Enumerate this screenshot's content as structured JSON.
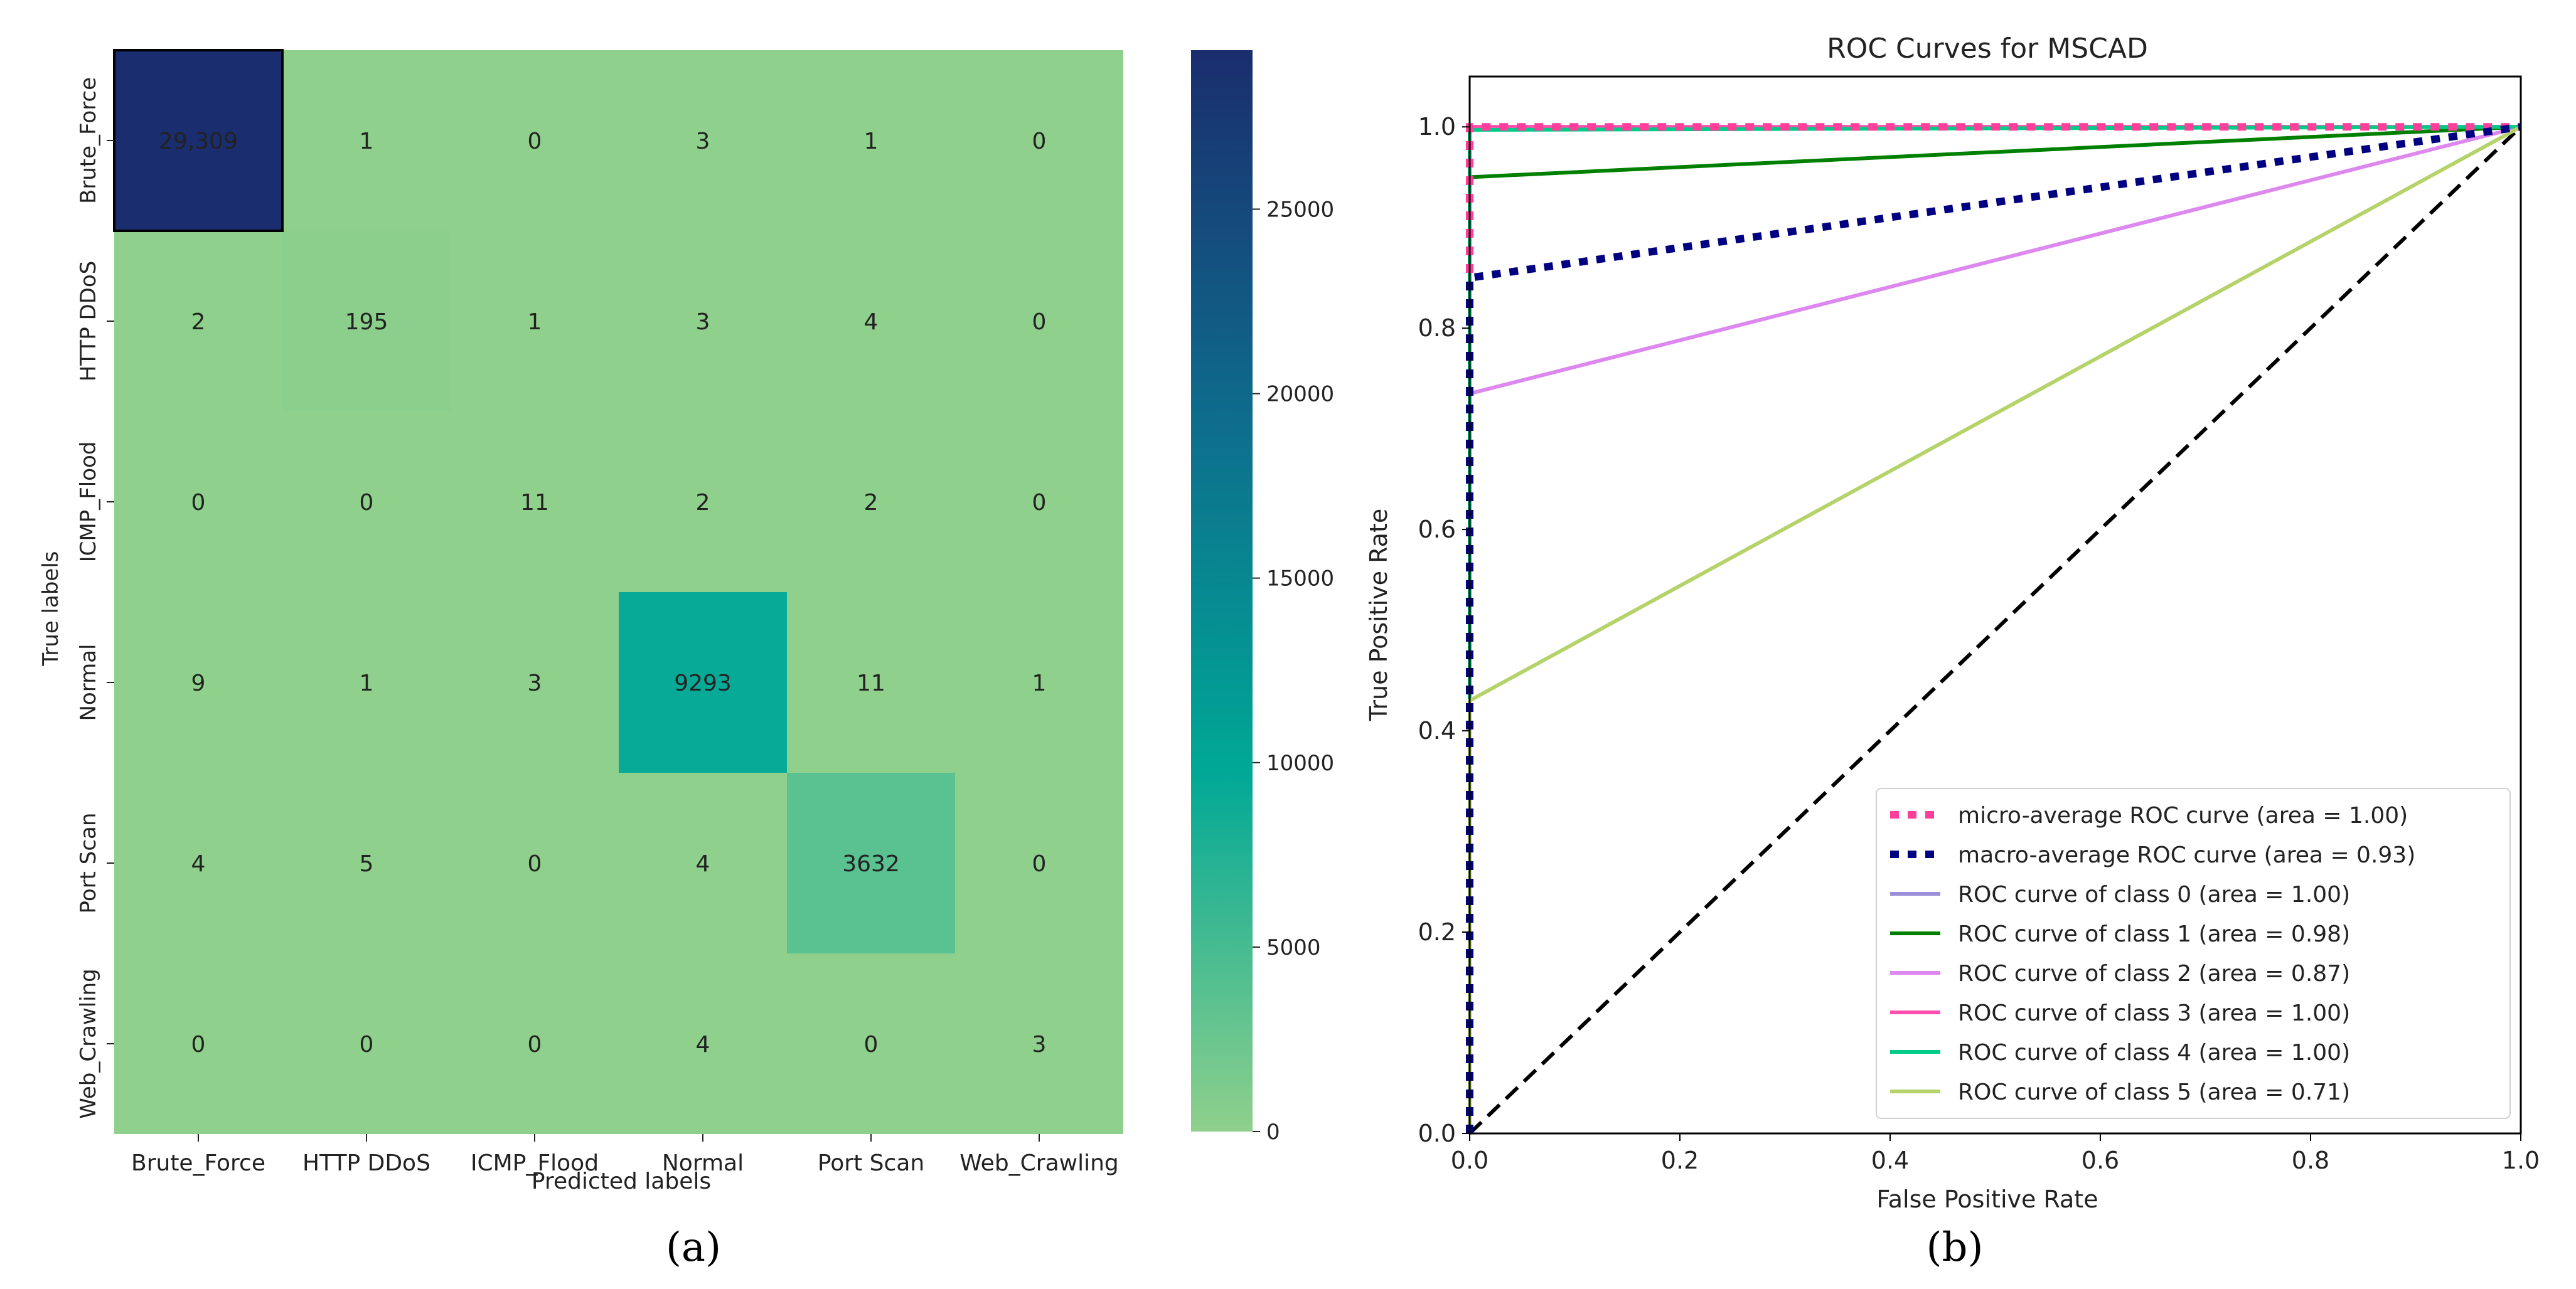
{
  "panel_a": {
    "caption": "(a)",
    "chart_data": {
      "type": "heatmap",
      "title": "",
      "xlabel": "Predicted labels",
      "ylabel": "True labels",
      "x_categories": [
        "Brute_Force",
        "HTTP DDoS",
        "ICMP_Flood",
        "Normal",
        "Port Scan",
        "Web_Crawling"
      ],
      "y_categories": [
        "Brute_Force",
        "HTTP DDoS",
        "ICMP_Flood",
        "Normal",
        "Port Scan",
        "Web_Crawling"
      ],
      "values": [
        [
          29309,
          1,
          0,
          3,
          1,
          0
        ],
        [
          2,
          195,
          1,
          3,
          4,
          0
        ],
        [
          0,
          0,
          11,
          2,
          2,
          0
        ],
        [
          9,
          1,
          3,
          9293,
          11,
          1
        ],
        [
          4,
          5,
          0,
          4,
          3632,
          0
        ],
        [
          0,
          0,
          0,
          4,
          0,
          3
        ]
      ],
      "cell_labels": [
        [
          "29,309",
          "1",
          "0",
          "3",
          "1",
          "0"
        ],
        [
          "2",
          "195",
          "1",
          "3",
          "4",
          "0"
        ],
        [
          "0",
          "0",
          "11",
          "2",
          "2",
          "0"
        ],
        [
          "9",
          "1",
          "3",
          "9293",
          "11",
          "1"
        ],
        [
          "4",
          "5",
          "0",
          "4",
          "3632",
          "0"
        ],
        [
          "0",
          "0",
          "0",
          "4",
          "0",
          "3"
        ]
      ],
      "colorbar": {
        "range": [
          0,
          29309
        ],
        "ticks": [
          0,
          5000,
          10000,
          15000,
          20000,
          25000
        ],
        "tick_labels": [
          "0",
          "5000",
          "10000",
          "15000",
          "20000",
          "25000"
        ],
        "colormap": [
          "#8fd08c",
          "#00a896",
          "#0e6b8c",
          "#1a2d6e"
        ]
      },
      "highlight_border": "#000000"
    }
  },
  "panel_b": {
    "caption": "(b)",
    "chart_data": {
      "type": "line",
      "title": "ROC Curves for MSCAD",
      "xlabel": "False Positive Rate",
      "ylabel": "True Positive Rate",
      "xlim": [
        0.0,
        1.0
      ],
      "ylim": [
        0.0,
        1.05
      ],
      "x_ticks": [
        0.0,
        0.2,
        0.4,
        0.6,
        0.8,
        1.0
      ],
      "x_tick_labels": [
        "0.0",
        "0.2",
        "0.4",
        "0.6",
        "0.8",
        "1.0"
      ],
      "y_ticks": [
        0.0,
        0.2,
        0.4,
        0.6,
        0.8,
        1.0
      ],
      "y_tick_labels": [
        "0.0",
        "0.2",
        "0.4",
        "0.6",
        "0.8",
        "1.0"
      ],
      "grid": false,
      "legend_position": "lower-right",
      "series": [
        {
          "name": "micro-average ROC curve (area = 1.00)",
          "color": "#ff3d9a",
          "style": "dotted",
          "x": [
            0.0,
            0.0,
            1.0
          ],
          "y": [
            0.0,
            1.0,
            1.0
          ]
        },
        {
          "name": "macro-average ROC curve (area = 0.93)",
          "color": "#000080",
          "style": "dotted",
          "x": [
            0.0,
            0.0,
            1.0
          ],
          "y": [
            0.0,
            0.85,
            1.0
          ]
        },
        {
          "name": "ROC curve of class 0 (area = 1.00)",
          "color": "#9b8fd8",
          "style": "solid",
          "x": [
            0.0,
            0.0,
            1.0
          ],
          "y": [
            0.0,
            1.0,
            1.0
          ]
        },
        {
          "name": "ROC curve of class 1 (area = 0.98)",
          "color": "#008000",
          "style": "solid",
          "x": [
            0.0,
            0.0,
            1.0
          ],
          "y": [
            0.0,
            0.95,
            1.0
          ]
        },
        {
          "name": "ROC curve of class 2 (area = 0.87)",
          "color": "#dd88ee",
          "style": "solid",
          "x": [
            0.0,
            0.0,
            1.0
          ],
          "y": [
            0.0,
            0.735,
            1.0
          ]
        },
        {
          "name": "ROC curve of class 3 (area = 1.00)",
          "color": "#ff4fae",
          "style": "solid",
          "x": [
            0.0,
            0.0,
            1.0
          ],
          "y": [
            0.0,
            1.0,
            1.0
          ]
        },
        {
          "name": "ROC curve of class 4 (area = 1.00)",
          "color": "#00cc88",
          "style": "solid",
          "x": [
            0.0,
            0.0,
            1.0
          ],
          "y": [
            0.0,
            0.997,
            1.0
          ]
        },
        {
          "name": "ROC curve of class 5 (area = 0.71)",
          "color": "#b5d36a",
          "style": "solid",
          "x": [
            0.0,
            0.0,
            1.0
          ],
          "y": [
            0.0,
            0.43,
            1.0
          ]
        }
      ],
      "reference_line": {
        "color": "#000000",
        "style": "dashed",
        "x": [
          0.0,
          1.0
        ],
        "y": [
          0.0,
          1.0
        ]
      }
    }
  }
}
